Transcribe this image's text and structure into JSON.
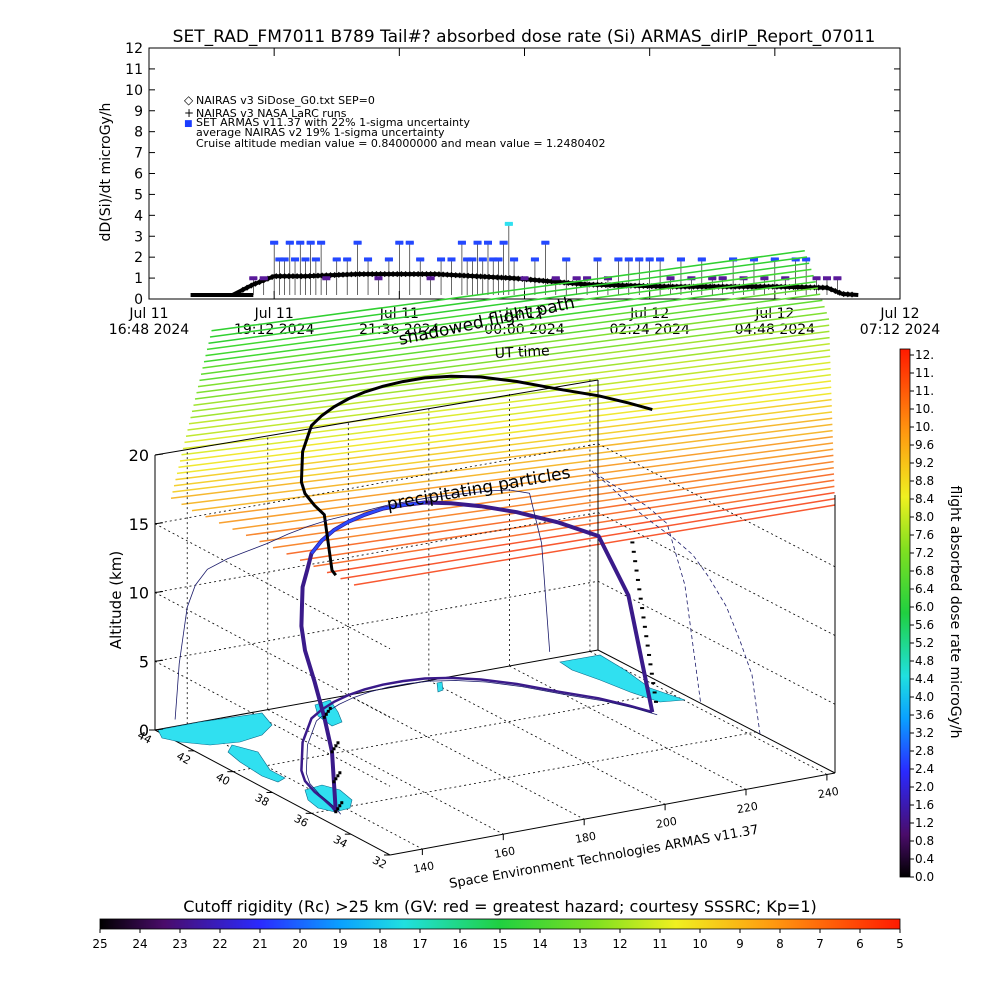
{
  "title": "SET_RAD_FM7011   B789 Tail#? absorbed dose rate (Si) ARMAS_dirIP_Report_07011",
  "chart_data": [
    {
      "type": "scatter",
      "ylabel": "dD(Si)/dt microGy/h",
      "ylim": [
        0,
        12
      ],
      "yticks": [
        0,
        1,
        2,
        3,
        4,
        5,
        6,
        7,
        8,
        9,
        10,
        11,
        12
      ],
      "xticks": [
        {
          "line1": "Jul 11",
          "line2": "16:48 2024"
        },
        {
          "line1": "Jul 11",
          "line2": "19:12 2024"
        },
        {
          "line1": "Jul 11",
          "line2": "21:36 2024"
        },
        {
          "line1": "Jul 12",
          "line2": "00:00 2024"
        },
        {
          "line1": "Jul 12",
          "line2": "02:24 2024"
        },
        {
          "line1": "Jul 12",
          "line2": "04:48 2024"
        },
        {
          "line1": "Jul 12",
          "line2": "07:12 2024"
        }
      ],
      "xlim_hours": [
        0,
        14.4
      ],
      "legend_position": "top-left",
      "legend": [
        {
          "symbol": "◇",
          "text": "NAIRAS v3 SiDose_G0.txt SEP=0"
        },
        {
          "symbol": "+",
          "text": "NAIRAS v3 NASA LaRC runs"
        },
        {
          "symbol": "■",
          "text": "SET ARMAS v11.37 with 22% 1-sigma uncertainty",
          "color": "#1a3cff"
        },
        {
          "symbol": "",
          "text": "average NAIRAS v2 19% 1-sigma uncertainty"
        },
        {
          "symbol": "",
          "text": "Cruise altitude median value = 0.84000000 and mean value = 1.2480402"
        }
      ],
      "nairas_profile": {
        "hours": [
          0.8,
          1.6,
          2.0,
          2.4,
          3.0,
          4.0,
          5.5,
          7.0,
          8.4,
          10.0,
          12.0,
          13.0,
          13.3,
          13.6
        ],
        "values": [
          0.0,
          0.0,
          0.5,
          0.9,
          0.9,
          1.0,
          1.0,
          0.8,
          0.5,
          0.4,
          0.4,
          0.35,
          0.05,
          0.0
        ]
      },
      "armas_hours": [
        2.0,
        2.2,
        2.4,
        2.5,
        2.6,
        2.7,
        2.8,
        2.9,
        3.0,
        3.1,
        3.2,
        3.3,
        3.4,
        3.6,
        3.8,
        4.0,
        4.2,
        4.4,
        4.6,
        4.8,
        5.0,
        5.2,
        5.4,
        5.6,
        5.8,
        6.0,
        6.1,
        6.2,
        6.3,
        6.4,
        6.5,
        6.6,
        6.7,
        6.8,
        6.9,
        7.0,
        7.2,
        7.4,
        7.6,
        7.8,
        8.0,
        8.2,
        8.4,
        8.6,
        8.8,
        9.0,
        9.2,
        9.4,
        9.6,
        9.8,
        10.0,
        10.2,
        10.4,
        10.6,
        10.8,
        11.0,
        11.2,
        11.4,
        11.6,
        11.8,
        12.0,
        12.2,
        12.4,
        12.6,
        12.8,
        13.0,
        13.2
      ],
      "armas_values": [
        0.8,
        0.8,
        2.5,
        1.7,
        1.7,
        2.5,
        1.7,
        2.5,
        1.7,
        2.5,
        1.7,
        2.5,
        0.8,
        1.7,
        1.7,
        2.5,
        1.7,
        0.8,
        1.7,
        2.5,
        2.5,
        1.7,
        0.8,
        1.7,
        1.7,
        2.5,
        1.7,
        1.7,
        2.5,
        1.7,
        2.5,
        1.7,
        1.7,
        2.5,
        3.4,
        1.7,
        0.8,
        1.7,
        2.5,
        0.8,
        1.7,
        0.8,
        0.8,
        1.7,
        0.8,
        1.7,
        1.7,
        1.7,
        1.7,
        1.7,
        0.8,
        1.7,
        0.8,
        1.7,
        0.8,
        0.8,
        1.7,
        0.8,
        1.7,
        0.8,
        1.7,
        0.8,
        1.7,
        1.7,
        0.8,
        0.8,
        0.8
      ]
    },
    {
      "type": "line",
      "zlabel": "Altitude (km)",
      "zlim": [
        0,
        20
      ],
      "zticks": [
        0,
        5,
        10,
        15,
        20
      ],
      "lat_ticks": [
        32,
        34,
        36,
        38,
        40,
        42,
        44
      ],
      "lon_ticks": [
        140,
        160,
        180,
        200,
        220,
        240
      ],
      "flight_track_lon": [
        137,
        137.5,
        138,
        139,
        140,
        142,
        145,
        150,
        155,
        160,
        165,
        170,
        175,
        180,
        185,
        190,
        195,
        200,
        205,
        210,
        215,
        220,
        225,
        228,
        230
      ],
      "flight_track_lat": [
        35.8,
        36.0,
        36.2,
        36.8,
        37.5,
        38.4,
        39.2,
        40.2,
        41.2,
        42.0,
        42.8,
        43.3,
        43.7,
        44.0,
        44.2,
        44.3,
        44.3,
        44.2,
        43.9,
        43.4,
        42.6,
        41.5,
        40.5,
        39.6,
        38.8
      ],
      "flight_track_alt": [
        0,
        2,
        4,
        6,
        8,
        9.5,
        10.5,
        11.0,
        11.3,
        11.6,
        12.0,
        12.3,
        12.5,
        12.6,
        12.7,
        12.8,
        12.8,
        12.8,
        12.7,
        12.6,
        12.5,
        12.3,
        11.8,
        8,
        0
      ],
      "annotations": [
        "shadowed flight path",
        "UT time",
        "precipitating particles"
      ],
      "footer": "Space Environment Technologies ARMAS v11.37"
    }
  ],
  "colorbar_right": {
    "label": "flight absorbed dose rate microGy/h",
    "ticks": [
      "12.",
      "11.",
      "11.",
      "10.",
      "10.",
      "9.6",
      "9.2",
      "8.8",
      "8.4",
      "8.0",
      "7.6",
      "7.2",
      "6.8",
      "6.4",
      "6.0",
      "5.6",
      "5.2",
      "4.8",
      "4.4",
      "4.0",
      "3.6",
      "3.2",
      "2.8",
      "2.4",
      "2.0",
      "1.6",
      "1.2",
      "0.8",
      "0.4",
      "0.0"
    ]
  },
  "colorbar_bottom": {
    "title": "Cutoff rigidity (Rc) >25 km (GV: red = greatest hazard; courtesy SSSRC; Kp=1)",
    "ticks": [
      "25",
      "24",
      "23",
      "22",
      "21",
      "20",
      "19",
      "18",
      "17",
      "16",
      "15",
      "14",
      "13",
      "12",
      "11",
      "10",
      "9",
      "8",
      "7",
      "6",
      "5"
    ]
  },
  "colors": {
    "armas": "#2448ff",
    "armas_dark": "#5a1a9a",
    "land": "#30e0f0",
    "track": "#3a1a8a"
  }
}
